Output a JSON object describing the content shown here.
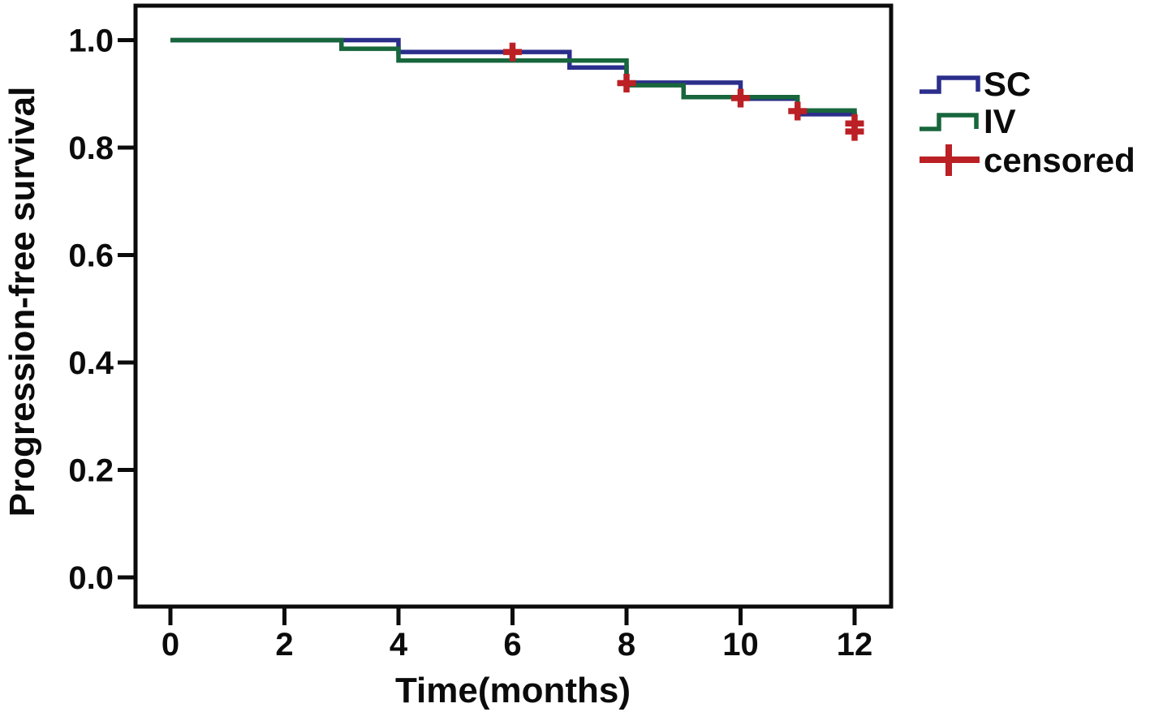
{
  "figure": {
    "background": "#ffffff",
    "axis_color": "#0b0b0b"
  },
  "legend": {
    "position": "right-top-outside",
    "items": [
      {
        "label": "SC",
        "symbol": "step-line-icon",
        "color": "#2b2e8b"
      },
      {
        "label": "IV",
        "symbol": "step-line-icon",
        "color": "#17663c"
      },
      {
        "label": "censored",
        "symbol": "plus-icon",
        "color": "#bb2025"
      }
    ]
  },
  "chart_data": {
    "type": "line",
    "subtype": "kaplan-meier-step",
    "title": "",
    "xlabel": "Time(months)",
    "ylabel": "Progression-free survival",
    "xlim": [
      -0.6,
      12.6
    ],
    "ylim": [
      -0.05,
      1.06
    ],
    "grid": false,
    "x_tick_values": [
      0,
      2,
      4,
      6,
      8,
      10,
      12
    ],
    "x_tick_labels": [
      "0",
      "2",
      "4",
      "6",
      "8",
      "10",
      "12"
    ],
    "y_tick_values": [
      0.0,
      0.2,
      0.4,
      0.6,
      0.8,
      1.0
    ],
    "y_tick_labels": [
      "0.0",
      "0.2",
      "0.4",
      "0.6",
      "0.8",
      "1.0"
    ],
    "series": [
      {
        "name": "SC",
        "color": "#2b2e8b",
        "line_width": 5.5,
        "steps": [
          [
            0,
            1.0
          ],
          [
            4,
            0.978
          ],
          [
            7,
            0.949
          ],
          [
            8,
            0.921
          ],
          [
            10,
            0.891
          ],
          [
            11,
            0.862
          ],
          [
            12,
            0.83
          ]
        ]
      },
      {
        "name": "IV",
        "color": "#17663c",
        "line_width": 5.5,
        "steps": [
          [
            0,
            1.0
          ],
          [
            3,
            0.984
          ],
          [
            4,
            0.962
          ],
          [
            8,
            0.916
          ],
          [
            9,
            0.894
          ],
          [
            11,
            0.869
          ],
          [
            12,
            0.845
          ]
        ]
      }
    ],
    "censored_marks": {
      "color": "#bb2025",
      "points": [
        {
          "x": 6,
          "y": 0.978,
          "series": "SC"
        },
        {
          "x": 8,
          "y": 0.92,
          "series": "both"
        },
        {
          "x": 10,
          "y": 0.892,
          "series": "IV"
        },
        {
          "x": 11,
          "y": 0.868,
          "series": "IV"
        },
        {
          "x": 12,
          "y": 0.845,
          "series": "IV"
        },
        {
          "x": 12,
          "y": 0.83,
          "series": "SC"
        }
      ]
    }
  }
}
